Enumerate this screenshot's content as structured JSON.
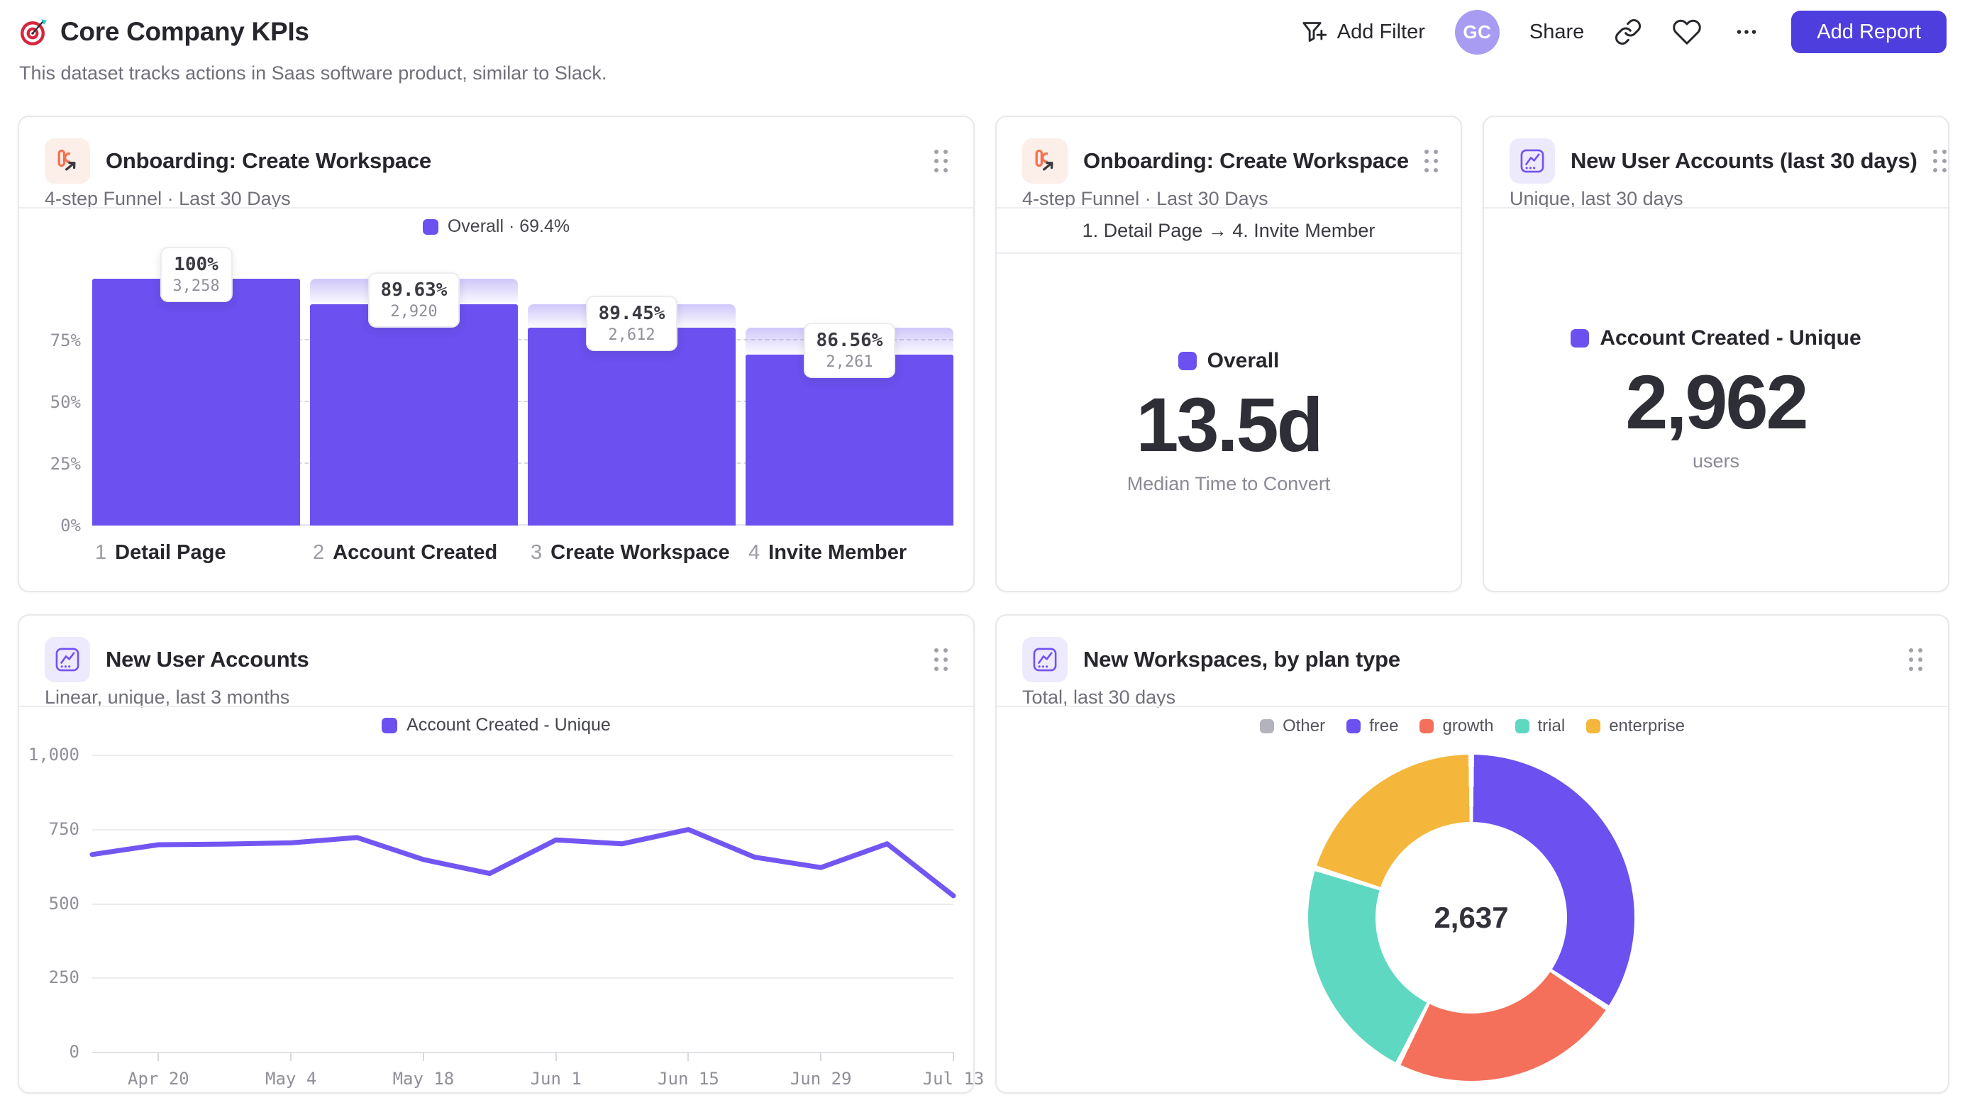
{
  "page": {
    "title": "Core Company KPIs",
    "subtitle": "This dataset tracks actions in Saas software product, similar to Slack."
  },
  "header": {
    "add_filter_label": "Add Filter",
    "avatar_initials": "GC",
    "share_label": "Share",
    "add_report_label": "Add Report"
  },
  "colors": {
    "accent_purple": "#6c50f0",
    "line_purple": "#7356f2",
    "coral": "#f5705a",
    "teal": "#5fd8c2",
    "amber": "#f5b63c",
    "gray": "#b3b3bb",
    "button_indigo": "#4e3ede"
  },
  "chart_data": [
    {
      "type": "bar",
      "variant": "funnel",
      "title": "Onboarding: Create Workspace",
      "subtitle": "4-step Funnel · Last 30 Days",
      "legend_label": "Overall · 69.4%",
      "overall_conversion_pct": 69.4,
      "y_axis_ticks_pct": [
        0,
        25,
        50,
        75
      ],
      "grid": "dashed-horizontal",
      "steps": [
        {
          "index": 1,
          "label": "Detail Page",
          "conversion_from_previous": "100%",
          "count": 3258,
          "count_label": "3,258",
          "overall_pct": 100
        },
        {
          "index": 2,
          "label": "Account Created",
          "conversion_from_previous": "89.63%",
          "count": 2920,
          "count_label": "2,920",
          "overall_pct": 89.63
        },
        {
          "index": 3,
          "label": "Create Workspace",
          "conversion_from_previous": "89.45%",
          "count": 2612,
          "count_label": "2,612",
          "overall_pct": 80.17
        },
        {
          "index": 4,
          "label": "Invite Member",
          "conversion_from_previous": "86.56%",
          "count": 2261,
          "count_label": "2,261",
          "overall_pct": 69.4
        }
      ]
    },
    {
      "type": "metric",
      "title": "Onboarding: Create Workspace",
      "subtitle": "4-step Funnel · Last 30 Days",
      "range_label": "1. Detail Page → 4. Invite Member",
      "legend_label": "Overall",
      "value": "13.5d",
      "caption": "Median Time to Convert"
    },
    {
      "type": "metric",
      "title": "New User Accounts (last 30 days)",
      "subtitle": "Unique, last 30 days",
      "legend_label": "Account Created - Unique",
      "value": "2,962",
      "caption": "users"
    },
    {
      "type": "line",
      "title": "New User Accounts",
      "subtitle": "Linear, unique, last 3 months",
      "ylim": [
        0,
        1000
      ],
      "grid": "horizontal",
      "legend_position": "top",
      "series": [
        {
          "name": "Account Created - Unique",
          "color": "#7356f2",
          "values": [
            664,
            697,
            699,
            703,
            721,
            647,
            600,
            713,
            700,
            748,
            655,
            620,
            700,
            525
          ]
        }
      ],
      "y_ticks": [
        {
          "v": 0,
          "label": "0"
        },
        {
          "v": 250,
          "label": "250"
        },
        {
          "v": 500,
          "label": "500"
        },
        {
          "v": 750,
          "label": "750"
        },
        {
          "v": 1000,
          "label": "1,000"
        }
      ],
      "x_ticks": [
        {
          "i": 1,
          "label": "Apr 20"
        },
        {
          "i": 3,
          "label": "May 4"
        },
        {
          "i": 5,
          "label": "May 18"
        },
        {
          "i": 7,
          "label": "Jun 1"
        },
        {
          "i": 9,
          "label": "Jun 15"
        },
        {
          "i": 11,
          "label": "Jun 29"
        },
        {
          "i": 13,
          "label": "Jul 13"
        }
      ]
    },
    {
      "type": "pie",
      "variant": "donut",
      "title": "New Workspaces, by plan type",
      "subtitle": "Total, last 30 days",
      "total": 2637,
      "total_label": "2,637",
      "legend_position": "top",
      "segments": [
        {
          "label": "Other",
          "color": "#b3b3bb",
          "value": 0,
          "pct": 0
        },
        {
          "label": "free",
          "color": "#6c50f0",
          "value": 905,
          "pct": 34.3
        },
        {
          "label": "growth",
          "color": "#f5705a",
          "value": 609,
          "pct": 23.1
        },
        {
          "label": "trial",
          "color": "#5fd8c2",
          "value": 593,
          "pct": 22.5
        },
        {
          "label": "enterprise",
          "color": "#f5b63c",
          "value": 530,
          "pct": 20.1
        }
      ]
    }
  ]
}
